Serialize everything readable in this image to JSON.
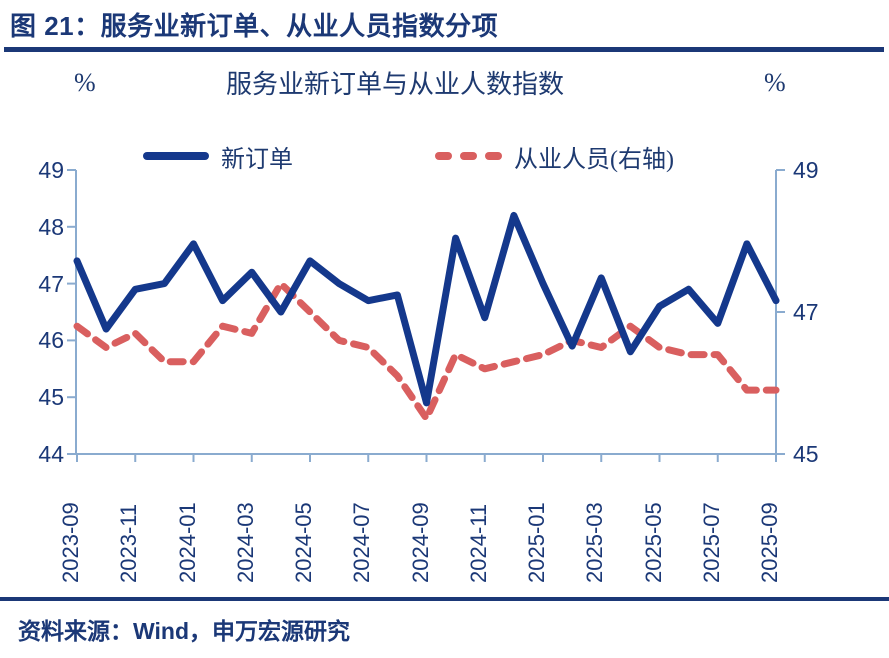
{
  "header": {
    "figure_title": "图 21：服务业新订单、从业人员指数分项"
  },
  "chart": {
    "title": "服务业新订单与从业人数指数",
    "left_unit": "%",
    "right_unit": "%"
  },
  "legend": {
    "series1_label": "新订单",
    "series2_label": "从业人员(右轴)"
  },
  "footer": {
    "source": "资料来源：Wind，申万宏源研究"
  },
  "colors": {
    "navy_text": "#1b3877",
    "new_orders_blue": "#14388c",
    "employment_red": "#d95f5f",
    "axis_blue": "#8aabcf"
  },
  "chart_data": {
    "type": "line",
    "title": "服务业新订单与从业人数指数",
    "x": [
      "2023-09",
      "2023-10",
      "2023-11",
      "2023-12",
      "2024-01",
      "2024-02",
      "2024-03",
      "2024-04",
      "2024-05",
      "2024-06",
      "2024-07",
      "2024-08",
      "2024-09",
      "2024-10",
      "2024-11",
      "2024-12",
      "2025-01",
      "2025-02",
      "2025-03",
      "2025-04",
      "2025-05",
      "2025-06",
      "2025-07",
      "2025-08",
      "2025-09"
    ],
    "x_tick_labels": [
      "2023-09",
      "2023-11",
      "2024-01",
      "2024-03",
      "2024-05",
      "2024-07",
      "2024-09",
      "2024-11",
      "2025-01",
      "2025-03",
      "2025-05",
      "2025-07",
      "2025-09"
    ],
    "left_axis": {
      "unit": "%",
      "range": [
        44,
        49
      ],
      "ticks": [
        49,
        48,
        47,
        46,
        45,
        44
      ]
    },
    "right_axis": {
      "unit": "%",
      "range": [
        45,
        49
      ],
      "ticks": [
        49,
        47,
        45
      ]
    },
    "grid": false,
    "legend_position": "top",
    "series": [
      {
        "name": "新订单",
        "axis": "left",
        "style": "solid",
        "color": "#14388c",
        "values": [
          47.4,
          46.2,
          46.9,
          47.0,
          47.7,
          46.7,
          47.2,
          46.5,
          47.4,
          47.0,
          46.7,
          46.8,
          44.9,
          47.8,
          46.4,
          48.2,
          47.0,
          45.9,
          47.1,
          45.8,
          46.6,
          46.9,
          46.3,
          47.7,
          46.7
        ]
      },
      {
        "name": "从业人员(右轴)",
        "axis": "right",
        "style": "dashed",
        "color": "#d95f5f",
        "values": [
          46.8,
          46.5,
          46.7,
          46.3,
          46.3,
          46.8,
          46.7,
          47.4,
          47.0,
          46.6,
          46.5,
          46.1,
          45.5,
          46.4,
          46.2,
          46.3,
          46.4,
          46.6,
          46.5,
          46.8,
          46.5,
          46.4,
          46.4,
          45.9,
          45.9
        ]
      }
    ]
  }
}
